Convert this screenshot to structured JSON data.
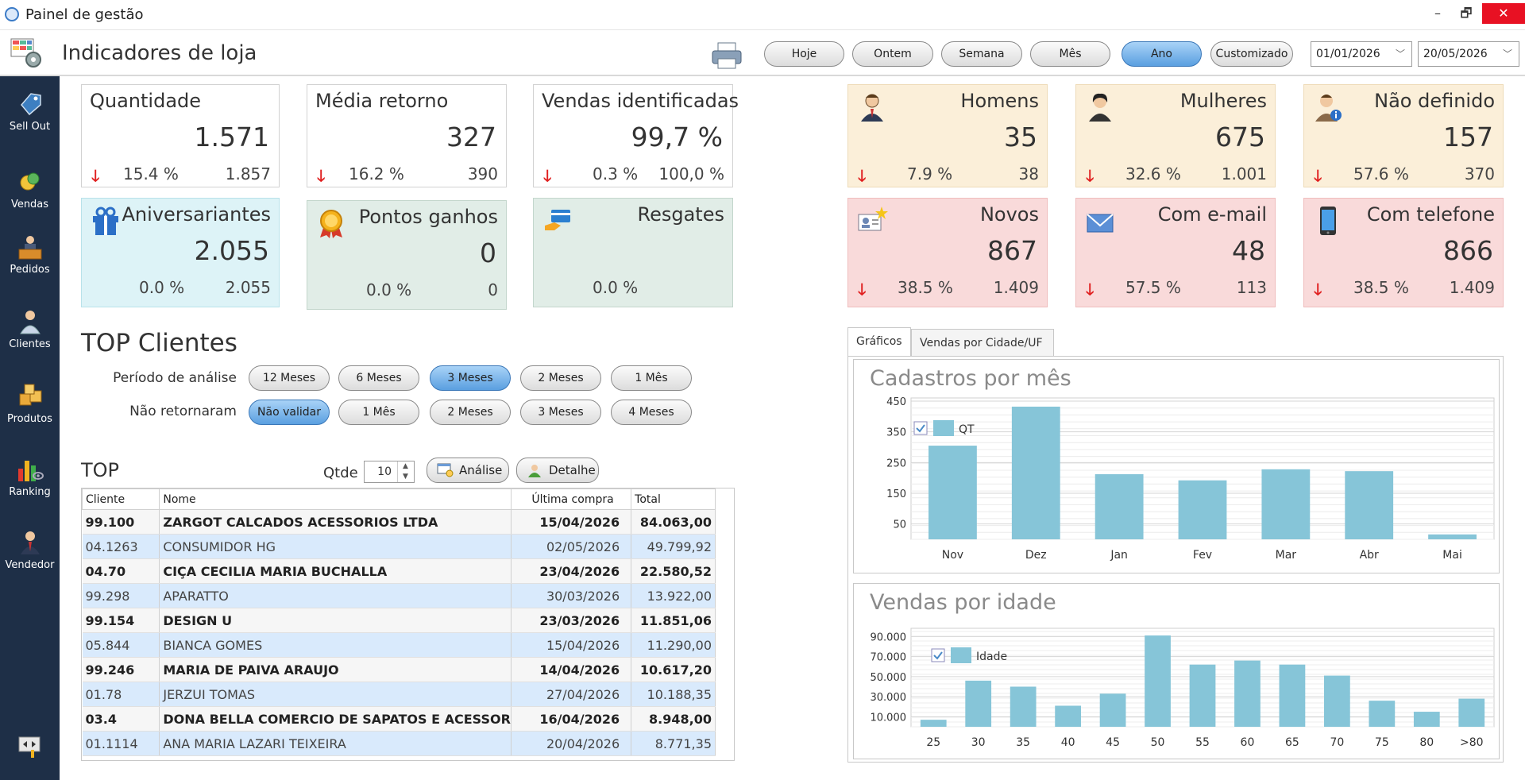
{
  "window": {
    "title": "Painel de gestão",
    "minimize": "–",
    "restore": "🗗",
    "close": "✕"
  },
  "header": {
    "title": "Indicadores de loja",
    "buttons": [
      {
        "label": "Hoje",
        "active": false
      },
      {
        "label": "Ontem",
        "active": false
      },
      {
        "label": "Semana",
        "active": false
      },
      {
        "label": "Mês",
        "active": false
      },
      {
        "label": "Ano",
        "active": true
      },
      {
        "label": "Customizado",
        "active": false
      }
    ],
    "date_from": "01/01/2026",
    "date_to": "20/05/2026"
  },
  "sidebar": {
    "items": [
      {
        "label": "Sell Out"
      },
      {
        "label": "Vendas"
      },
      {
        "label": "Pedidos"
      },
      {
        "label": "Clientes"
      },
      {
        "label": "Produtos"
      },
      {
        "label": "Ranking"
      },
      {
        "label": "Vendedor"
      }
    ]
  },
  "cards": {
    "quantidade": {
      "label": "Quantidade",
      "value": "1.571",
      "pct": "15.4 %",
      "prev": "1.857"
    },
    "media": {
      "label": "Média retorno",
      "value": "327",
      "pct": "16.2 %",
      "prev": "390"
    },
    "vendas_ident": {
      "label": "Vendas identificadas",
      "value": "99,7 %",
      "pct": "0.3 %",
      "prev": "100,0 %"
    },
    "aniversariantes": {
      "label": "Aniversariantes",
      "value": "2.055",
      "pct": "0.0 %",
      "prev": "2.055"
    },
    "pontos": {
      "label": "Pontos ganhos",
      "value": "0",
      "pct": "0.0 %",
      "prev": "0"
    },
    "resgates": {
      "label": "Resgates",
      "pct": "0.0 %"
    },
    "homens": {
      "label": "Homens",
      "value": "35",
      "pct": "7.9 %",
      "prev": "38"
    },
    "mulheres": {
      "label": "Mulheres",
      "value": "675",
      "pct": "32.6 %",
      "prev": "1.001"
    },
    "nao_definido": {
      "label": "Não definido",
      "value": "157",
      "pct": "57.6 %",
      "prev": "370"
    },
    "novos": {
      "label": "Novos",
      "value": "867",
      "pct": "38.5 %",
      "prev": "1.409"
    },
    "email": {
      "label": "Com e-mail",
      "value": "48",
      "pct": "57.5 %",
      "prev": "113"
    },
    "telefone": {
      "label": "Com telefone",
      "value": "866",
      "pct": "38.5 %",
      "prev": "1.409"
    }
  },
  "top_clientes": {
    "title": "TOP Clientes",
    "periodo_label": "Período de análise",
    "periodo_options": [
      "12 Meses",
      "6 Meses",
      "3 Meses",
      "2 Meses",
      "1 Mês"
    ],
    "periodo_selected": 2,
    "nao_retornaram_label": "Não retornaram",
    "nao_retornaram_options": [
      "Não validar",
      "1 Mês",
      "2 Meses",
      "3 Meses",
      "4 Meses"
    ],
    "nao_retornaram_selected": 0,
    "top_label": "TOP",
    "qtde_label": "Qtde",
    "qtde_value": "10",
    "analise_button": "Análise",
    "detalhe_button": "Detalhe",
    "columns": [
      "Cliente",
      "Nome",
      "Última compra",
      "Total"
    ],
    "rows": [
      [
        "99.100",
        "ZARGOT CALCADOS ACESSORIOS LTDA",
        "15/04/2026",
        "84.063,00"
      ],
      [
        "04.1263",
        "CONSUMIDOR HG",
        "02/05/2026",
        "49.799,92"
      ],
      [
        "04.70",
        "CIÇA CECILIA MARIA BUCHALLA",
        "23/04/2026",
        "22.580,52"
      ],
      [
        "99.298",
        "APARATTO",
        "30/03/2026",
        "13.922,00"
      ],
      [
        "99.154",
        "DESIGN U",
        "23/03/2026",
        "11.851,06"
      ],
      [
        "05.844",
        "BIANCA GOMES",
        "15/04/2026",
        "11.290,00"
      ],
      [
        "99.246",
        "MARIA DE PAIVA ARAUJO",
        "14/04/2026",
        "10.617,20"
      ],
      [
        "01.78",
        "JERZUI TOMAS",
        "27/04/2026",
        "10.188,35"
      ],
      [
        "03.4",
        "DONA BELLA COMERCIO DE SAPATOS E ACESSOR",
        "16/04/2026",
        "8.948,00"
      ],
      [
        "01.1114",
        "ANA MARIA LAZARI TEIXEIRA",
        "20/04/2026",
        "8.771,35"
      ]
    ]
  },
  "tabs": {
    "items": [
      "Gráficos",
      "Vendas por Cidade/UF"
    ],
    "active": 0
  },
  "chart_data": [
    {
      "type": "bar",
      "title": "Cadastros por mês",
      "categories": [
        "Nov",
        "Dez",
        "Jan",
        "Fev",
        "Mar",
        "Abr",
        "Mai"
      ],
      "series": [
        {
          "name": "QT",
          "values": [
            305,
            432,
            212,
            192,
            228,
            222,
            16
          ]
        }
      ],
      "yticks": [
        "50",
        "150",
        "250",
        "350",
        "450"
      ],
      "ylim": [
        0,
        450
      ],
      "legend": "top-left",
      "color": "#86c5d8"
    },
    {
      "type": "bar",
      "title": "Vendas por idade",
      "categories": [
        "25",
        "30",
        "35",
        "40",
        "45",
        "50",
        "55",
        "60",
        "65",
        "70",
        "75",
        "80",
        ">80"
      ],
      "series": [
        {
          "name": "Idade",
          "values": [
            7000,
            46000,
            40000,
            21000,
            33000,
            91000,
            62000,
            66000,
            62000,
            51000,
            26000,
            15000,
            28000
          ]
        }
      ],
      "yticks": [
        "10.000",
        "30.000",
        "50.000",
        "70.000",
        "90.000"
      ],
      "ylim": [
        0,
        95000
      ],
      "legend": "top-left",
      "color": "#86c5d8"
    }
  ]
}
